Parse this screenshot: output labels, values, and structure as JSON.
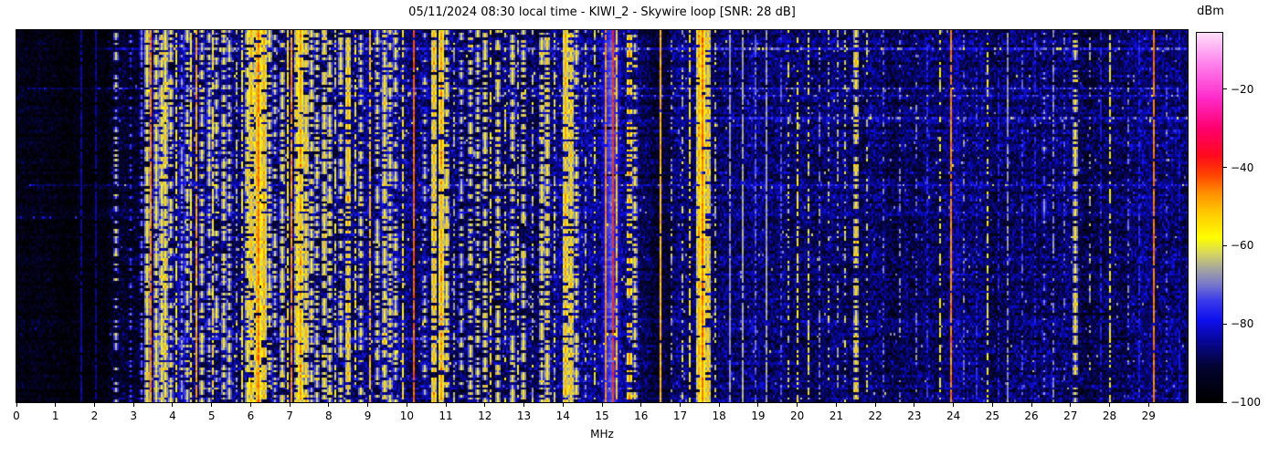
{
  "title": "05/11/2024 08:30 local time - KIWI_2 - Skywire loop [SNR: 28 dB]",
  "xlabel": "MHz",
  "axis": {
    "x_ticks": [
      0,
      1,
      2,
      3,
      4,
      5,
      6,
      7,
      8,
      9,
      10,
      11,
      12,
      13,
      14,
      15,
      16,
      17,
      18,
      19,
      20,
      21,
      22,
      23,
      24,
      25,
      26,
      27,
      28,
      29
    ],
    "x_min": 0,
    "x_max": 30,
    "y_ticks": []
  },
  "colorbar": {
    "label": "dBm",
    "ticks": [
      -20,
      -40,
      -60,
      -80,
      -100
    ],
    "tick_labels": [
      "−20",
      "−40",
      "−60",
      "−80",
      "−100"
    ],
    "vmax": -5.6,
    "vmin": -100
  },
  "chart_data": {
    "type": "heatmap",
    "title": "05/11/2024 08:30 local time - KIWI_2 - Skywire loop [SNR: 28 dB]",
    "xlabel": "MHz",
    "ylabel": "",
    "x_range": [
      0,
      30
    ],
    "x_ticks": [
      0,
      1,
      2,
      3,
      4,
      5,
      6,
      7,
      8,
      9,
      10,
      11,
      12,
      13,
      14,
      15,
      16,
      17,
      18,
      19,
      20,
      21,
      22,
      23,
      24,
      25,
      26,
      27,
      28,
      29
    ],
    "y_ticks": [],
    "colorbar_label": "dBm",
    "color_scale": {
      "vmin": -100,
      "vmax": -5.6,
      "ticks": [
        -20,
        -40,
        -60,
        -80,
        -100
      ]
    },
    "snr_db": 28,
    "station": "KIWI_2",
    "antenna": "Skywire loop",
    "datetime_local": "05/11/2024 08:30",
    "render": {
      "freq_bins": 641,
      "time_rows": 150,
      "seed": 42
    },
    "colormap_stops": [
      [
        -100,
        0,
        0,
        0
      ],
      [
        -91,
        4,
        4,
        50
      ],
      [
        -84,
        8,
        8,
        160
      ],
      [
        -79,
        16,
        16,
        240
      ],
      [
        -74,
        60,
        60,
        235
      ],
      [
        -70,
        120,
        120,
        205
      ],
      [
        -66,
        165,
        165,
        160
      ],
      [
        -62,
        215,
        215,
        95
      ],
      [
        -58,
        255,
        255,
        0
      ],
      [
        -52,
        255,
        205,
        0
      ],
      [
        -47,
        255,
        150,
        0
      ],
      [
        -42,
        255,
        70,
        0
      ],
      [
        -37,
        255,
        10,
        30
      ],
      [
        -30,
        255,
        0,
        110
      ],
      [
        -22,
        255,
        45,
        205
      ],
      [
        -13,
        255,
        135,
        238
      ],
      [
        -5,
        255,
        230,
        250
      ]
    ],
    "noise_region_format": [
      "f_start_MHz",
      "f_end_MHz",
      "base_dBm",
      "sigma_dB",
      "spike_prob",
      "spike_boost_dB"
    ],
    "noise_regions": [
      [
        0.0,
        2.3,
        -96.5,
        3.0,
        0.002,
        8
      ],
      [
        2.3,
        3.35,
        -93.0,
        3.5,
        0.006,
        10
      ],
      [
        3.35,
        15.95,
        -87.5,
        4.5,
        0.022,
        15
      ],
      [
        15.95,
        16.75,
        -90.0,
        3.5,
        0.006,
        10
      ],
      [
        16.75,
        19.7,
        -87.0,
        4.0,
        0.012,
        12
      ],
      [
        19.7,
        22.3,
        -87.5,
        4.0,
        0.012,
        12
      ],
      [
        22.3,
        30.0,
        -88.5,
        4.0,
        0.01,
        11
      ]
    ],
    "streak_format": [
      "time_frac",
      "f_start_MHz",
      "f_end_MHz",
      "boost_dB"
    ],
    "streaks": [
      [
        0.048,
        2.2,
        30.0,
        6.0
      ],
      [
        0.155,
        0.3,
        30.0,
        6.5
      ],
      [
        0.175,
        6.0,
        30.0,
        3.5
      ],
      [
        0.235,
        17.0,
        30.0,
        4.0
      ],
      [
        0.415,
        0.3,
        30.0,
        6.5
      ],
      [
        0.5,
        0.0,
        8.5,
        4.5
      ],
      [
        0.83,
        3.5,
        12.6,
        11.0
      ]
    ],
    "signal_format": [
      "freq_MHz",
      "width_MHz",
      "level_dBm",
      "jitter_dB",
      "duty"
    ],
    "signals": [
      [
        1.62,
        0.04,
        -84,
        3,
        0.85
      ],
      [
        2.02,
        0.04,
        -85,
        3,
        0.8
      ],
      [
        2.55,
        0.05,
        -63,
        6,
        0.3
      ],
      [
        2.92,
        0.05,
        -74,
        5,
        0.3
      ],
      [
        3.2,
        0.05,
        -70,
        6,
        0.45
      ],
      [
        3.33,
        0.05,
        -56,
        5,
        0.75
      ],
      [
        3.41,
        0.04,
        -46,
        4,
        0.95
      ],
      [
        3.55,
        0.09,
        -58,
        6,
        0.8
      ],
      [
        3.7,
        0.08,
        -57,
        7,
        0.8
      ],
      [
        3.82,
        0.09,
        -56,
        7,
        0.8
      ],
      [
        3.95,
        0.05,
        -60,
        6,
        0.6
      ],
      [
        4.07,
        0.04,
        -58,
        6,
        0.65
      ],
      [
        4.2,
        0.05,
        -67,
        6,
        0.5
      ],
      [
        4.35,
        0.06,
        -60,
        6,
        0.6
      ],
      [
        4.47,
        0.04,
        -57,
        5,
        0.7
      ],
      [
        4.58,
        0.04,
        -49,
        5,
        0.85
      ],
      [
        4.75,
        0.05,
        -60,
        6,
        0.6
      ],
      [
        4.9,
        0.05,
        -63,
        6,
        0.5
      ],
      [
        5.0,
        0.04,
        -56,
        6,
        0.7
      ],
      [
        5.12,
        0.05,
        -62,
        6,
        0.5
      ],
      [
        5.3,
        0.05,
        -58,
        6,
        0.6
      ],
      [
        5.45,
        0.05,
        -61,
        6,
        0.55
      ],
      [
        5.62,
        0.04,
        -65,
        6,
        0.5
      ],
      [
        5.76,
        0.04,
        -58,
        5,
        0.6
      ],
      [
        5.9,
        0.05,
        -56,
        6,
        0.7
      ],
      [
        6.02,
        0.05,
        -52,
        6,
        0.8
      ],
      [
        6.12,
        0.05,
        -50,
        5,
        0.85
      ],
      [
        6.2,
        0.09,
        -45,
        4,
        0.95
      ],
      [
        6.31,
        0.05,
        -50,
        5,
        0.9
      ],
      [
        6.45,
        0.05,
        -58,
        6,
        0.6
      ],
      [
        6.62,
        0.05,
        -62,
        6,
        0.5
      ],
      [
        6.8,
        0.05,
        -58,
        6,
        0.65
      ],
      [
        6.95,
        0.04,
        -55,
        5,
        0.7
      ],
      [
        7.04,
        0.04,
        -47,
        5,
        0.9
      ],
      [
        7.16,
        0.06,
        -54,
        6,
        0.8
      ],
      [
        7.27,
        0.09,
        -48,
        6,
        0.88
      ],
      [
        7.42,
        0.06,
        -53,
        6,
        0.8
      ],
      [
        7.56,
        0.05,
        -58,
        6,
        0.6
      ],
      [
        7.7,
        0.05,
        -60,
        6,
        0.55
      ],
      [
        7.86,
        0.05,
        -56,
        6,
        0.65
      ],
      [
        8.0,
        0.05,
        -58,
        6,
        0.6
      ],
      [
        8.16,
        0.04,
        -62,
        6,
        0.5
      ],
      [
        8.32,
        0.05,
        -58,
        6,
        0.6
      ],
      [
        8.5,
        0.05,
        -51,
        6,
        0.8
      ],
      [
        8.66,
        0.04,
        -58,
        6,
        0.55
      ],
      [
        8.82,
        0.05,
        -60,
        6,
        0.5
      ],
      [
        9.06,
        0.04,
        -51,
        5,
        0.8
      ],
      [
        9.22,
        0.05,
        -60,
        6,
        0.5
      ],
      [
        9.4,
        0.06,
        -56,
        6,
        0.7
      ],
      [
        9.56,
        0.05,
        -58,
        6,
        0.6
      ],
      [
        9.72,
        0.05,
        -60,
        6,
        0.5
      ],
      [
        9.9,
        0.04,
        -56,
        5,
        0.6
      ],
      [
        10.17,
        0.04,
        -44,
        4,
        0.96
      ],
      [
        10.45,
        0.05,
        -62,
        6,
        0.4
      ],
      [
        10.7,
        0.08,
        -50,
        6,
        0.85
      ],
      [
        10.87,
        0.09,
        -48,
        6,
        0.9
      ],
      [
        11.02,
        0.05,
        -56,
        6,
        0.6
      ],
      [
        11.2,
        0.04,
        -65,
        6,
        0.4
      ],
      [
        11.4,
        0.05,
        -62,
        6,
        0.45
      ],
      [
        11.62,
        0.05,
        -58,
        6,
        0.5
      ],
      [
        11.8,
        0.05,
        -60,
        6,
        0.5
      ],
      [
        12.0,
        0.05,
        -58,
        6,
        0.55
      ],
      [
        12.16,
        0.04,
        -56,
        6,
        0.6
      ],
      [
        12.35,
        0.06,
        -57,
        7,
        0.6
      ],
      [
        12.52,
        0.04,
        -60,
        6,
        0.5
      ],
      [
        12.7,
        0.05,
        -58,
        6,
        0.6
      ],
      [
        12.86,
        0.04,
        -62,
        6,
        0.5
      ],
      [
        13.0,
        0.05,
        -58,
        6,
        0.55
      ],
      [
        13.2,
        0.04,
        -64,
        6,
        0.45
      ],
      [
        13.45,
        0.05,
        -57,
        6,
        0.6
      ],
      [
        13.6,
        0.05,
        -55,
        6,
        0.65
      ],
      [
        13.8,
        0.04,
        -62,
        6,
        0.45
      ],
      [
        14.05,
        0.08,
        -50,
        6,
        0.85
      ],
      [
        14.18,
        0.06,
        -52,
        6,
        0.8
      ],
      [
        14.35,
        0.05,
        -58,
        6,
        0.55
      ],
      [
        14.6,
        0.04,
        -63,
        6,
        0.4
      ],
      [
        14.8,
        0.04,
        -60,
        6,
        0.45
      ],
      [
        15.25,
        0.5,
        -72,
        3,
        0.97
      ],
      [
        15.08,
        0.04,
        -46,
        4,
        0.95
      ],
      [
        15.26,
        0.03,
        -40,
        3,
        0.97
      ],
      [
        15.38,
        0.04,
        -52,
        5,
        0.8
      ],
      [
        15.68,
        0.05,
        -48,
        6,
        0.45
      ],
      [
        15.85,
        0.05,
        -58,
        7,
        0.5
      ],
      [
        16.5,
        0.025,
        -50,
        4,
        0.95
      ],
      [
        16.8,
        0.04,
        -66,
        6,
        0.35
      ],
      [
        17.05,
        0.04,
        -63,
        6,
        0.4
      ],
      [
        17.27,
        0.025,
        -56,
        5,
        0.65
      ],
      [
        17.48,
        0.06,
        -50,
        5,
        0.9
      ],
      [
        17.6,
        0.08,
        -44,
        4,
        0.95
      ],
      [
        17.73,
        0.05,
        -52,
        5,
        0.8
      ],
      [
        17.92,
        0.04,
        -63,
        6,
        0.4
      ],
      [
        18.3,
        0.03,
        -68,
        3,
        0.85
      ],
      [
        18.62,
        0.03,
        -66,
        3,
        0.9
      ],
      [
        18.95,
        0.03,
        -72,
        4,
        0.6
      ],
      [
        19.22,
        0.03,
        -67,
        3,
        0.9
      ],
      [
        19.6,
        0.03,
        -73,
        4,
        0.5
      ],
      [
        19.8,
        0.03,
        -62,
        6,
        0.35
      ],
      [
        20.0,
        0.04,
        -58,
        6,
        0.5
      ],
      [
        20.28,
        0.03,
        -61,
        6,
        0.45
      ],
      [
        20.6,
        0.03,
        -70,
        5,
        0.4
      ],
      [
        20.8,
        0.03,
        -64,
        6,
        0.3
      ],
      [
        21.05,
        0.03,
        -66,
        5,
        0.4
      ],
      [
        21.25,
        0.03,
        -63,
        6,
        0.4
      ],
      [
        21.5,
        0.12,
        -55,
        8,
        0.7
      ],
      [
        21.78,
        0.04,
        -63,
        6,
        0.4
      ],
      [
        22.2,
        0.03,
        -71,
        5,
        0.3
      ],
      [
        22.62,
        0.03,
        -69,
        5,
        0.3
      ],
      [
        23.05,
        0.03,
        -71,
        5,
        0.3
      ],
      [
        23.35,
        0.03,
        -76,
        4,
        0.5
      ],
      [
        23.68,
        0.04,
        -59,
        6,
        0.45
      ],
      [
        23.93,
        0.03,
        -46,
        4,
        0.96
      ],
      [
        24.3,
        0.03,
        -71,
        5,
        0.3
      ],
      [
        24.62,
        0.03,
        -76,
        4,
        0.4
      ],
      [
        24.88,
        0.04,
        -59,
        6,
        0.5
      ],
      [
        25.15,
        0.03,
        -78,
        4,
        0.6
      ],
      [
        25.42,
        0.03,
        -68,
        4,
        0.7
      ],
      [
        25.8,
        0.03,
        -73,
        4,
        0.5
      ],
      [
        26.1,
        0.03,
        -77,
        4,
        0.5
      ],
      [
        26.35,
        0.05,
        -69,
        6,
        0.3
      ],
      [
        26.58,
        0.03,
        -69,
        4,
        0.6
      ],
      [
        26.85,
        0.03,
        -72,
        5,
        0.3
      ],
      [
        27.16,
        0.06,
        -57,
        7,
        0.65
      ],
      [
        27.5,
        0.04,
        -66,
        6,
        0.35
      ],
      [
        27.8,
        0.03,
        -78,
        4,
        0.6
      ],
      [
        28.04,
        0.03,
        -59,
        5,
        0.6
      ],
      [
        28.5,
        0.03,
        -71,
        5,
        0.3
      ],
      [
        28.8,
        0.03,
        -77,
        4,
        0.5
      ],
      [
        29.17,
        0.03,
        -45,
        3,
        0.95
      ],
      [
        29.5,
        0.04,
        -73,
        5,
        0.3
      ],
      [
        29.8,
        0.04,
        -80,
        4,
        0.6
      ]
    ]
  }
}
